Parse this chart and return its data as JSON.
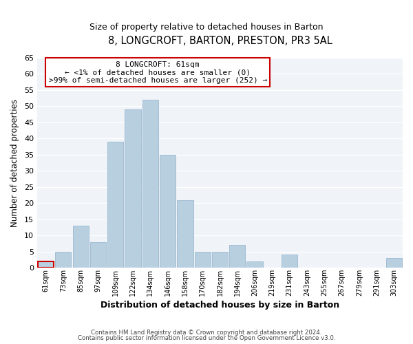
{
  "title": "8, LONGCROFT, BARTON, PRESTON, PR3 5AL",
  "subtitle": "Size of property relative to detached houses in Barton",
  "xlabel": "Distribution of detached houses by size in Barton",
  "ylabel": "Number of detached properties",
  "bar_color": "#b8cfe0",
  "bar_edge_color": "#9ab8d0",
  "background_color": "#ffffff",
  "plot_bg_color": "#f0f4f8",
  "categories": [
    "61sqm",
    "73sqm",
    "85sqm",
    "97sqm",
    "109sqm",
    "122sqm",
    "134sqm",
    "146sqm",
    "158sqm",
    "170sqm",
    "182sqm",
    "194sqm",
    "206sqm",
    "219sqm",
    "231sqm",
    "243sqm",
    "255sqm",
    "267sqm",
    "279sqm",
    "291sqm",
    "303sqm"
  ],
  "values": [
    2,
    5,
    13,
    8,
    39,
    49,
    52,
    35,
    21,
    5,
    5,
    7,
    2,
    0,
    4,
    0,
    0,
    0,
    0,
    0,
    3
  ],
  "ylim": [
    0,
    65
  ],
  "yticks": [
    0,
    5,
    10,
    15,
    20,
    25,
    30,
    35,
    40,
    45,
    50,
    55,
    60,
    65
  ],
  "annotation_title": "8 LONGCROFT: 61sqm",
  "annotation_line1": "← <1% of detached houses are smaller (0)",
  "annotation_line2": ">99% of semi-detached houses are larger (252) →",
  "annotation_box_color": "#ffffff",
  "annotation_box_edge_color": "#cc0000",
  "footer1": "Contains HM Land Registry data © Crown copyright and database right 2024.",
  "footer2": "Contains public sector information licensed under the Open Government Licence v3.0.",
  "highlighted_bar_index": 0,
  "highlighted_bar_color": "#cc0000"
}
